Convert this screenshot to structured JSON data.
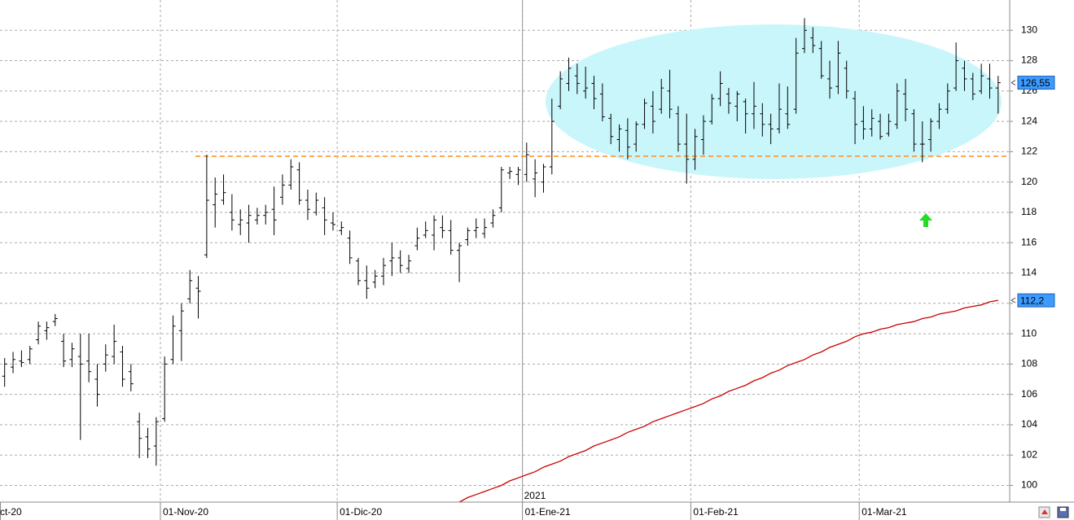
{
  "chart_data": {
    "type": "ohlc",
    "year_label": "2021",
    "categories": [
      "ct-20",
      null,
      null,
      null,
      null,
      null,
      null,
      null,
      null,
      null,
      null,
      null,
      null,
      null,
      null,
      null,
      null,
      null,
      null,
      "01-Nov-20",
      null,
      null,
      null,
      null,
      null,
      null,
      null,
      null,
      null,
      null,
      null,
      null,
      null,
      null,
      null,
      null,
      null,
      null,
      null,
      null,
      "01-Dic-20",
      null,
      null,
      null,
      null,
      null,
      null,
      null,
      null,
      null,
      null,
      null,
      null,
      null,
      null,
      null,
      null,
      null,
      null,
      null,
      null,
      null,
      "01-Ene-21",
      null,
      null,
      null,
      null,
      null,
      null,
      null,
      null,
      null,
      null,
      null,
      null,
      null,
      null,
      null,
      null,
      null,
      null,
      null,
      "01-Feb-21",
      null,
      null,
      null,
      null,
      null,
      null,
      null,
      null,
      null,
      null,
      null,
      null,
      null,
      null,
      null,
      null,
      null,
      null,
      null,
      "01-Mar-21",
      null,
      null,
      null,
      null,
      null,
      null,
      null,
      null,
      null,
      null,
      null,
      null,
      null,
      null,
      null,
      null
    ],
    "open": [
      107.2,
      107.8,
      108.2,
      108.3,
      109.6,
      110.2,
      110.8,
      109.5,
      108.3,
      108.5,
      108.2,
      107.0,
      108.0,
      108.5,
      108.8,
      107.5,
      104.2,
      103.2,
      102.6,
      104.4,
      108.3,
      110.2,
      112.3,
      113.0,
      115.2,
      118.5,
      118.8,
      118.0,
      117.2,
      117.3,
      117.5,
      117.8,
      118.2,
      119.0,
      119.8,
      120.8,
      118.8,
      118.0,
      118.3,
      117.3,
      116.8,
      116.3,
      114.8,
      113.5,
      113.4,
      113.8,
      114.8,
      115.0,
      114.3,
      115.8,
      116.5,
      116.5,
      117.0,
      116.8,
      115.5,
      116.2,
      116.8,
      116.6,
      117.3,
      118.3,
      120.6,
      120.5,
      120.5,
      120.2,
      120.0,
      121.0,
      125.0,
      126.5,
      127.0,
      126.0,
      126.5,
      125.8,
      124.2,
      122.8,
      123.4,
      122.5,
      123.8,
      125.0,
      124.8,
      126.0,
      124.5,
      122.5,
      121.5,
      122.8,
      124.0,
      125.5,
      125.8,
      125.0,
      125.3,
      124.5,
      124.5,
      123.8,
      123.5,
      124.5,
      124.8,
      128.8,
      129.5,
      128.8,
      126.8,
      126.3,
      127.5,
      125.5,
      124.0,
      123.5,
      124.0,
      123.2,
      123.8,
      125.8,
      124.5,
      122.5,
      122.8,
      124.0,
      124.8,
      126.2,
      127.5,
      126.8,
      126.0,
      126.8,
      126.2
    ],
    "high": [
      108.4,
      108.8,
      108.9,
      109.2,
      110.8,
      110.8,
      111.3,
      110.0,
      109.4,
      110.0,
      110.0,
      108.0,
      109.3,
      110.6,
      109.2,
      108.0,
      104.8,
      103.8,
      104.5,
      108.5,
      111.2,
      112.0,
      114.2,
      113.8,
      121.8,
      120.3,
      120.5,
      119.2,
      118.2,
      118.5,
      118.3,
      118.5,
      119.7,
      120.5,
      121.5,
      121.3,
      119.5,
      119.3,
      119.0,
      118.0,
      117.4,
      116.8,
      115.0,
      114.5,
      114.2,
      115.0,
      116.0,
      115.5,
      115.2,
      117.0,
      117.4,
      117.8,
      117.8,
      117.5,
      116.0,
      117.0,
      117.6,
      117.6,
      118.2,
      121.0,
      121.0,
      121.0,
      122.6,
      121.5,
      121.2,
      125.5,
      127.3,
      128.2,
      127.8,
      127.6,
      127.0,
      126.5,
      124.5,
      123.8,
      124.2,
      124.0,
      125.5,
      126.0,
      126.8,
      127.4,
      125.0,
      124.5,
      123.5,
      124.4,
      125.8,
      127.3,
      126.2,
      126.0,
      125.5,
      126.6,
      125.2,
      124.5,
      126.5,
      126.3,
      129.5,
      130.8,
      130.2,
      129.3,
      128.0,
      129.3,
      128.0,
      126.0,
      125.0,
      124.8,
      124.5,
      124.5,
      126.5,
      126.8,
      124.8,
      124.0,
      124.2,
      125.2,
      126.5,
      129.2,
      128.0,
      127.2,
      127.8,
      127.8,
      127.0
    ],
    "low": [
      106.5,
      107.4,
      107.8,
      108.0,
      109.3,
      109.6,
      110.5,
      107.8,
      107.8,
      103.0,
      106.8,
      105.2,
      107.5,
      108.0,
      106.5,
      106.2,
      101.8,
      101.8,
      101.3,
      104.2,
      108.0,
      108.2,
      112.0,
      111.0,
      115.0,
      117.0,
      118.5,
      116.8,
      116.5,
      116.0,
      117.2,
      117.2,
      116.5,
      118.5,
      119.5,
      118.5,
      117.5,
      117.8,
      116.5,
      116.8,
      116.5,
      114.6,
      113.2,
      112.3,
      113.0,
      113.2,
      113.8,
      114.0,
      114.0,
      115.5,
      116.3,
      115.5,
      116.3,
      115.2,
      113.4,
      115.8,
      116.3,
      116.3,
      117.0,
      118.0,
      120.2,
      119.8,
      120.0,
      119.0,
      119.3,
      120.5,
      124.8,
      126.0,
      125.8,
      125.5,
      124.8,
      124.0,
      122.5,
      122.0,
      121.5,
      122.0,
      123.5,
      123.2,
      124.5,
      124.2,
      122.0,
      119.9,
      120.8,
      121.8,
      123.8,
      125.0,
      124.5,
      124.0,
      123.2,
      123.5,
      123.0,
      122.5,
      123.2,
      123.5,
      124.5,
      128.5,
      128.5,
      126.8,
      125.5,
      125.8,
      125.5,
      122.5,
      122.8,
      123.0,
      122.8,
      123.0,
      123.5,
      124.0,
      122.0,
      121.3,
      122.0,
      123.5,
      124.5,
      126.0,
      126.0,
      125.4,
      125.8,
      125.5,
      124.5
    ],
    "close": [
      108.0,
      108.3,
      108.1,
      109.0,
      110.5,
      110.4,
      111.0,
      108.2,
      109.0,
      108.0,
      107.5,
      106.0,
      108.6,
      109.5,
      107.0,
      106.7,
      103.1,
      102.4,
      104.2,
      108.0,
      110.5,
      111.5,
      113.5,
      112.8,
      118.8,
      119.2,
      119.3,
      117.5,
      117.5,
      117.8,
      117.8,
      118.0,
      117.5,
      119.8,
      121.0,
      118.8,
      118.2,
      118.8,
      117.5,
      117.2,
      117.0,
      115.0,
      113.5,
      113.0,
      113.8,
      114.5,
      115.0,
      114.5,
      114.8,
      116.3,
      116.8,
      117.5,
      116.8,
      115.5,
      115.8,
      116.8,
      117.0,
      117.0,
      117.8,
      120.8,
      120.7,
      120.8,
      121.8,
      120.6,
      121.0,
      124.0,
      126.8,
      127.5,
      126.5,
      126.2,
      125.5,
      124.3,
      123.0,
      123.5,
      122.3,
      123.8,
      125.2,
      124.0,
      126.2,
      124.8,
      122.5,
      121.5,
      123.0,
      124.0,
      125.5,
      126.5,
      125.2,
      125.8,
      124.5,
      125.0,
      123.8,
      123.5,
      124.8,
      123.8,
      128.5,
      130.0,
      129.0,
      127.0,
      126.2,
      128.5,
      126.0,
      123.8,
      123.5,
      124.2,
      123.0,
      124.0,
      126.0,
      124.8,
      122.5,
      122.5,
      124.0,
      124.8,
      126.0,
      128.0,
      126.8,
      125.8,
      127.0,
      126.2,
      126.55
    ],
    "bar_color": "#000000",
    "moving_average": {
      "color": "#cc0000",
      "values": [
        null,
        null,
        null,
        null,
        null,
        null,
        null,
        null,
        null,
        null,
        null,
        null,
        null,
        null,
        null,
        null,
        null,
        null,
        null,
        null,
        null,
        null,
        null,
        null,
        null,
        null,
        null,
        null,
        null,
        null,
        null,
        null,
        null,
        null,
        null,
        null,
        null,
        null,
        null,
        null,
        null,
        null,
        null,
        null,
        null,
        null,
        null,
        null,
        null,
        null,
        null,
        null,
        null,
        98.7,
        98.9,
        99.2,
        99.4,
        99.6,
        99.8,
        100.0,
        100.3,
        100.5,
        100.7,
        100.9,
        101.2,
        101.4,
        101.6,
        101.9,
        102.1,
        102.3,
        102.6,
        102.8,
        103.0,
        103.2,
        103.5,
        103.7,
        103.9,
        104.2,
        104.4,
        104.6,
        104.8,
        105.0,
        105.2,
        105.4,
        105.7,
        105.9,
        106.2,
        106.4,
        106.6,
        106.9,
        107.1,
        107.4,
        107.6,
        107.9,
        108.1,
        108.3,
        108.6,
        108.8,
        109.1,
        109.3,
        109.5,
        109.8,
        110.0,
        110.1,
        110.3,
        110.4,
        110.6,
        110.7,
        110.8,
        111.0,
        111.1,
        111.3,
        111.4,
        111.5,
        111.7,
        111.8,
        111.9,
        112.1,
        112.2
      ]
    },
    "support_level": {
      "value": 121.7,
      "color": "#ff8c1a"
    },
    "price_labels": [
      {
        "value": 126.55,
        "label": "126,55"
      },
      {
        "value": 112.2,
        "label": "112,2"
      }
    ],
    "price_label_color": "#3d9bff",
    "ylim": [
      98.9,
      132.0
    ],
    "yticks": [
      100,
      102,
      104,
      106,
      108,
      110,
      112,
      114,
      116,
      118,
      120,
      122,
      124,
      126,
      128,
      130
    ],
    "grid": true
  }
}
